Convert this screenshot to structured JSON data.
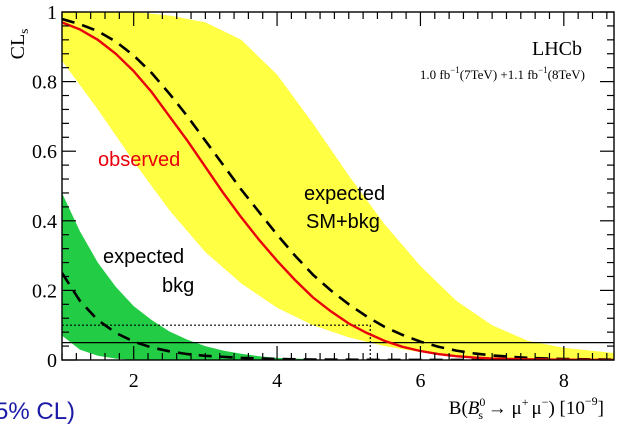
{
  "chart_data": {
    "type": "line",
    "xlim": [
      1,
      8.7
    ],
    "ylim": [
      0,
      1
    ],
    "x_ticks": [
      2,
      4,
      6,
      8
    ],
    "y_ticks": [
      0,
      0.2,
      0.4,
      0.6,
      0.8,
      1
    ],
    "x_tick_labels": [
      "2",
      "4",
      "6",
      "8"
    ],
    "y_tick_labels": [
      "0",
      "0.2",
      "0.4",
      "0.6",
      "0.8",
      "1"
    ],
    "grid": false,
    "ylabel": {
      "main": "CL",
      "sub": "s"
    },
    "xlabel": {
      "prefix": "B(",
      "b": "B",
      "b_sup": "0",
      "b_sub": "s",
      "arrow": " → ",
      "mu": "μ",
      "plus": "+",
      "minus": "−",
      "suffix": ") [10",
      "exp": "−9",
      "close": "]"
    },
    "experiment": "LHCb",
    "luminosity": {
      "lumi1": "1.0 fb",
      "energy1": "(7TeV) +1.1 fb",
      "energy2": "(8TeV)",
      "inv": "−1"
    },
    "annotations": {
      "observed": "observed",
      "exp_sm_line1": "expected",
      "exp_sm_line2": "SM+bkg",
      "exp_bkg_line1": "expected",
      "exp_bkg_line2": "bkg",
      "cropped_text": "5% CL)"
    },
    "colors": {
      "observed": "#e8000b",
      "sm_band": "#ffff44",
      "bkg_band": "#22cc44",
      "dashed": "#000000",
      "cropped_text": "#1a1aa6"
    },
    "cl_limit": {
      "y": 0.1,
      "x": 5.3
    },
    "cl_level2": {
      "y": 0.05
    },
    "series": [
      {
        "name": "observed",
        "x": [
          1.0,
          1.25,
          1.5,
          1.75,
          2.0,
          2.25,
          2.5,
          2.75,
          3.0,
          3.25,
          3.5,
          3.75,
          4.0,
          4.25,
          4.5,
          4.75,
          5.0,
          5.25,
          5.5,
          5.75,
          6.0,
          6.25,
          6.5,
          6.75,
          7.0,
          7.5,
          8.0,
          8.7
        ],
        "y": [
          0.97,
          0.95,
          0.92,
          0.88,
          0.83,
          0.77,
          0.7,
          0.63,
          0.555,
          0.48,
          0.41,
          0.345,
          0.285,
          0.23,
          0.18,
          0.14,
          0.105,
          0.078,
          0.055,
          0.038,
          0.026,
          0.017,
          0.011,
          0.007,
          0.004,
          0.002,
          0.001,
          0.0
        ]
      },
      {
        "name": "expected SM+bkg",
        "x": [
          1.0,
          1.25,
          1.5,
          1.75,
          2.0,
          2.25,
          2.5,
          2.75,
          3.0,
          3.25,
          3.5,
          3.75,
          4.0,
          4.25,
          4.5,
          4.75,
          5.0,
          5.25,
          5.5,
          5.75,
          6.0,
          6.25,
          6.5,
          6.75,
          7.0,
          7.5,
          8.0,
          8.7
        ],
        "y": [
          0.98,
          0.965,
          0.945,
          0.915,
          0.875,
          0.825,
          0.765,
          0.7,
          0.63,
          0.56,
          0.49,
          0.425,
          0.36,
          0.3,
          0.245,
          0.2,
          0.16,
          0.125,
          0.095,
          0.072,
          0.053,
          0.038,
          0.027,
          0.019,
          0.013,
          0.006,
          0.003,
          0.001
        ]
      },
      {
        "name": "expected bkg",
        "x": [
          1.0,
          1.25,
          1.5,
          1.75,
          2.0,
          2.25,
          2.5,
          2.75,
          3.0,
          3.5,
          4.0,
          4.5,
          5.0,
          5.5,
          6.0,
          7.0,
          8.7
        ],
        "y": [
          0.25,
          0.17,
          0.115,
          0.078,
          0.053,
          0.036,
          0.025,
          0.017,
          0.012,
          0.006,
          0.003,
          0.0015,
          0.0008,
          0.0004,
          0.0002,
          0.0,
          0.0
        ]
      }
    ],
    "bands": [
      {
        "name": "expected SM+bkg band",
        "x": [
          1.0,
          1.5,
          2.0,
          2.5,
          3.0,
          3.5,
          4.0,
          4.5,
          5.0,
          5.5,
          6.0,
          6.5,
          7.0,
          7.5,
          8.0,
          8.7
        ],
        "upper": [
          1.0,
          1.0,
          1.0,
          0.99,
          0.97,
          0.92,
          0.82,
          0.68,
          0.53,
          0.39,
          0.27,
          0.17,
          0.1,
          0.055,
          0.035,
          0.02
        ],
        "lower": [
          0.86,
          0.72,
          0.57,
          0.43,
          0.31,
          0.22,
          0.15,
          0.1,
          0.065,
          0.04,
          0.022,
          0.012,
          0.006,
          0.003,
          0.0015,
          0.0
        ]
      },
      {
        "name": "expected bkg band",
        "x": [
          1.0,
          1.25,
          1.5,
          1.75,
          2.0,
          2.25,
          2.5,
          2.75,
          3.0,
          3.25,
          3.5,
          3.75,
          4.0,
          4.5,
          5.0
        ],
        "upper": [
          0.48,
          0.37,
          0.28,
          0.21,
          0.155,
          0.115,
          0.082,
          0.058,
          0.04,
          0.027,
          0.018,
          0.011,
          0.006,
          0.002,
          0.0
        ],
        "lower": [
          0.07,
          0.03,
          0.012,
          0.004,
          0.0,
          0.0,
          0.0,
          0.0,
          0.0,
          0.0,
          0.0,
          0.0,
          0.0,
          0.0,
          0.0
        ]
      }
    ]
  }
}
